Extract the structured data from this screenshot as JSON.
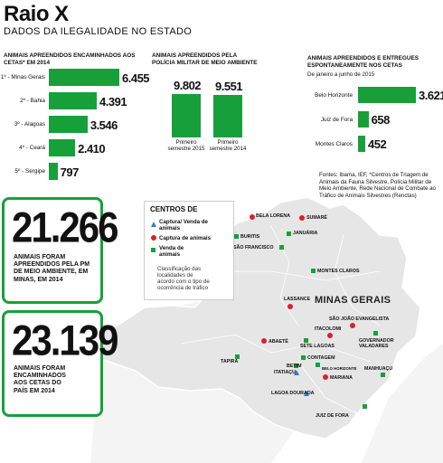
{
  "header": {
    "title": "Raio X",
    "subtitle": "DADOS DA ILEGALIDADE NO ESTADO"
  },
  "chart_data": [
    {
      "type": "bar",
      "orientation": "horizontal",
      "title": "ANIMAIS APREENDIDOS ENCAMINHADOS AOS CETAS* EM 2014",
      "categories": [
        "1º - Minas Gerais",
        "2º - Bahia",
        "3º - Alagoas",
        "4º - Ceará",
        "5º - Sergipe"
      ],
      "values": [
        6455,
        4391,
        3546,
        2410,
        797
      ],
      "value_labels": [
        "6.455",
        "4.391",
        "3.546",
        "2.410",
        "797"
      ]
    },
    {
      "type": "bar",
      "orientation": "vertical",
      "title": "ANIMAIS APREENDIDOS PELA POLÍCIA MILITAR DE MEIO AMBIENTE",
      "categories": [
        "Primeiro semestre 2015",
        "Primeiro semestre 2014"
      ],
      "values": [
        9802,
        9551
      ],
      "value_labels": [
        "9.802",
        "9.551"
      ]
    },
    {
      "type": "bar",
      "orientation": "horizontal",
      "title": "ANIMAIS APREENDIDOS E ENTREGUES ESPONTANEAMENTE NOS CETAS",
      "subtitle": "De janeiro a junho de 2015",
      "categories": [
        "Belo Horizonte",
        "Juiz de Fora",
        "Montes Claros"
      ],
      "values": [
        3621,
        658,
        452
      ],
      "value_labels": [
        "3.621",
        "658",
        "452"
      ]
    }
  ],
  "sources": "Fontes: Ibama, IEF, *Centros de Triagem de Animais da Fauna Silvestre, Polícia Militar de Meio Ambiente, Rede Nacional de Combate ao Tráfico de Animais Silvestres (Renctas)",
  "stat_boxes": [
    {
      "number": "21.266",
      "text": "ANIMAIS FORAM APREENDIDOS PELA PM DE MEIO AMBIENTE, EM MINAS, EM 2014"
    },
    {
      "number": "23.139",
      "text": "ANIMAIS FORAM ENCAMINHADOS AOS CETAS DO PAÍS EM 2014"
    }
  ],
  "map": {
    "state_label": "MINAS GERAIS",
    "legend": {
      "title": "CENTROS DE",
      "items": [
        {
          "marker": "blue-triangle",
          "label": "Captura/ Venda de animais"
        },
        {
          "marker": "red-circle",
          "label": "Captura de animais"
        },
        {
          "marker": "green-square",
          "label": "Venda de animais"
        }
      ],
      "note": "Classificação das localidades de acordo com o tipo de ocorrência de tráfico"
    },
    "colors": {
      "capture": "#d9202e",
      "sale": "#17a03a",
      "both": "#2f7fc9",
      "state": "#e4e4e4",
      "neighbors": "#f5f5f5"
    },
    "cities": [
      {
        "name": "BELA LORENA",
        "type": "capture"
      },
      {
        "name": "SUMARÉ",
        "type": "capture"
      },
      {
        "name": "BURITIS",
        "type": "sale"
      },
      {
        "name": "JANUÁRIA",
        "type": "sale"
      },
      {
        "name": "SÃO FRANCISCO",
        "type": "sale"
      },
      {
        "name": "MONTES CLAROS",
        "type": "sale"
      },
      {
        "name": "LASSANCE",
        "type": "capture"
      },
      {
        "name": "SÃO JOÃO EVANGELISTA",
        "type": "capture"
      },
      {
        "name": "ITACOLOMI",
        "type": "capture"
      },
      {
        "name": "GOVERNADOR VALADARES",
        "type": "sale"
      },
      {
        "name": "ABAETÉ",
        "type": "capture"
      },
      {
        "name": "SETE LAGOAS",
        "type": "sale"
      },
      {
        "name": "CONTAGEM",
        "type": "sale"
      },
      {
        "name": "BELO HORIZONTE",
        "type": "sale"
      },
      {
        "name": "BETIM",
        "type": "sale"
      },
      {
        "name": "ITATIAÇU",
        "type": "both"
      },
      {
        "name": "MARIANA",
        "type": "capture"
      },
      {
        "name": "TAPIRA",
        "type": "sale"
      },
      {
        "name": "MANHUAÇU",
        "type": "sale"
      },
      {
        "name": "LAGOA DOURADA",
        "type": "both"
      },
      {
        "name": "JUIZ DE FORA",
        "type": "sale"
      }
    ]
  }
}
